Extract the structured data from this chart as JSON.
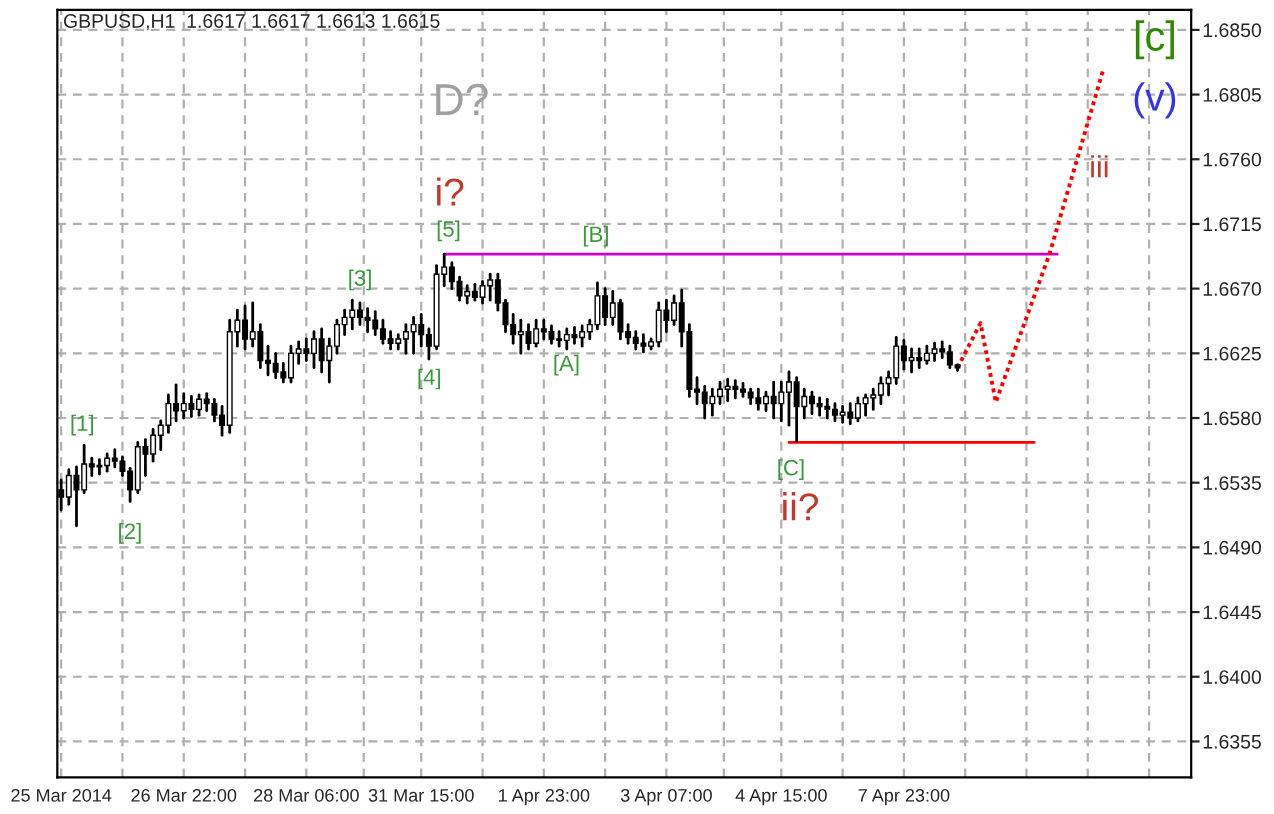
{
  "chart_data": {
    "type": "candlestick",
    "title": "GBPUSD,H1  1.6617 1.6617 1.6613 1.6615",
    "categories": [
      "25 Mar 2014",
      null,
      null,
      null,
      null,
      null,
      null,
      null,
      null,
      null,
      null,
      null,
      null,
      null,
      null,
      null,
      "26 Mar 22:00",
      null,
      null,
      null,
      null,
      null,
      null,
      null,
      null,
      null,
      null,
      null,
      null,
      null,
      null,
      null,
      "28 Mar 06:00",
      null,
      null,
      null,
      null,
      null,
      null,
      null,
      null,
      null,
      null,
      null,
      null,
      null,
      null,
      "31 Mar 15:00",
      null,
      null,
      null,
      null,
      null,
      null,
      null,
      null,
      null,
      null,
      null,
      null,
      null,
      null,
      null,
      "1 Apr 23:00",
      null,
      null,
      null,
      null,
      null,
      null,
      null,
      null,
      null,
      null,
      null,
      null,
      null,
      null,
      null,
      "3 Apr 07:00",
      null,
      null,
      null,
      null,
      null,
      null,
      null,
      null,
      null,
      null,
      null,
      null,
      null,
      null,
      "4 Apr 15:00",
      null,
      null,
      null,
      null,
      null,
      null,
      null,
      null,
      null,
      null,
      null,
      null,
      null,
      null,
      null,
      "7 Apr 23:00",
      null,
      null,
      null,
      null,
      null,
      null,
      null,
      null,
      null,
      null,
      null,
      null,
      null,
      null,
      null,
      null,
      null,
      null,
      null,
      null,
      null,
      null,
      null,
      null,
      null,
      null,
      null,
      null,
      null,
      null,
      null,
      null,
      null,
      null,
      null,
      null,
      null
    ],
    "ylim": [
      1.633,
      1.6864
    ],
    "yticks": [
      {
        "value": 1.6355,
        "label": "1.6355"
      },
      {
        "value": 1.64,
        "label": "1.6400"
      },
      {
        "value": 1.6445,
        "label": "1.6445"
      },
      {
        "value": 1.649,
        "label": "1.6490"
      },
      {
        "value": 1.6535,
        "label": "1.6535"
      },
      {
        "value": 1.658,
        "label": "1.6580"
      },
      {
        "value": 1.6625,
        "label": "1.6625"
      },
      {
        "value": 1.667,
        "label": "1.6670"
      },
      {
        "value": 1.6715,
        "label": "1.6715"
      },
      {
        "value": 1.676,
        "label": "1.6760"
      },
      {
        "value": 1.6805,
        "label": "1.6805"
      },
      {
        "value": 1.685,
        "label": "1.6850"
      }
    ],
    "grid": true,
    "series": [
      {
        "color": "#000000",
        "ohlc": [
          [
            1.653,
            1.6537,
            1.6516,
            1.6525
          ],
          [
            1.6525,
            1.6544,
            1.652,
            1.654
          ],
          [
            1.654,
            1.6546,
            1.6505,
            1.653
          ],
          [
            1.653,
            1.6561,
            1.6528,
            1.6548
          ],
          [
            1.6548,
            1.6552,
            1.654,
            1.6546
          ],
          [
            1.6546,
            1.6551,
            1.6541,
            1.6547
          ],
          [
            1.6547,
            1.6555,
            1.6543,
            1.6552
          ],
          [
            1.6552,
            1.6558,
            1.6546,
            1.655
          ],
          [
            1.655,
            1.6553,
            1.654,
            1.6543
          ],
          [
            1.6543,
            1.6545,
            1.6522,
            1.653
          ],
          [
            1.653,
            1.6563,
            1.6528,
            1.656
          ],
          [
            1.656,
            1.6565,
            1.654,
            1.6555
          ],
          [
            1.6555,
            1.6572,
            1.655,
            1.6568
          ],
          [
            1.6568,
            1.6578,
            1.6558,
            1.6575
          ],
          [
            1.6575,
            1.6596,
            1.657,
            1.659
          ],
          [
            1.659,
            1.6603,
            1.6578,
            1.6585
          ],
          [
            1.6585,
            1.6597,
            1.658,
            1.659
          ],
          [
            1.659,
            1.6595,
            1.6581,
            1.6586
          ],
          [
            1.6586,
            1.6596,
            1.6582,
            1.6593
          ],
          [
            1.6593,
            1.6597,
            1.6585,
            1.659
          ],
          [
            1.659,
            1.6593,
            1.6578,
            1.6582
          ],
          [
            1.6582,
            1.6588,
            1.6568,
            1.6575
          ],
          [
            1.6575,
            1.6648,
            1.657,
            1.664
          ],
          [
            1.664,
            1.6655,
            1.663,
            1.6648
          ],
          [
            1.6648,
            1.6658,
            1.6628,
            1.6635
          ],
          [
            1.6635,
            1.666,
            1.663,
            1.664
          ],
          [
            1.664,
            1.6645,
            1.6615,
            1.662
          ],
          [
            1.662,
            1.663,
            1.661,
            1.6618
          ],
          [
            1.6618,
            1.6625,
            1.6608,
            1.6612
          ],
          [
            1.6612,
            1.6618,
            1.6605,
            1.6608
          ],
          [
            1.6608,
            1.663,
            1.6605,
            1.6625
          ],
          [
            1.6625,
            1.6633,
            1.6618,
            1.6628
          ],
          [
            1.6628,
            1.6635,
            1.662,
            1.6625
          ],
          [
            1.6625,
            1.664,
            1.6615,
            1.6635
          ],
          [
            1.6635,
            1.6642,
            1.6612,
            1.662
          ],
          [
            1.662,
            1.6635,
            1.6605,
            1.663
          ],
          [
            1.663,
            1.6648,
            1.6625,
            1.6645
          ],
          [
            1.6645,
            1.6655,
            1.6638,
            1.665
          ],
          [
            1.665,
            1.6662,
            1.6642,
            1.6655
          ],
          [
            1.6655,
            1.666,
            1.6645,
            1.665
          ],
          [
            1.665,
            1.6656,
            1.664,
            1.6648
          ],
          [
            1.6648,
            1.6654,
            1.6638,
            1.6642
          ],
          [
            1.6642,
            1.6648,
            1.6632,
            1.6635
          ],
          [
            1.6635,
            1.664,
            1.6628,
            1.6632
          ],
          [
            1.6632,
            1.6638,
            1.6628,
            1.6635
          ],
          [
            1.6635,
            1.6645,
            1.6625,
            1.664
          ],
          [
            1.664,
            1.665,
            1.6625,
            1.6645
          ],
          [
            1.6645,
            1.6652,
            1.663,
            1.6638
          ],
          [
            1.6638,
            1.6642,
            1.6621,
            1.663
          ],
          [
            1.663,
            1.6686,
            1.6628,
            1.668
          ],
          [
            1.668,
            1.6694,
            1.6672,
            1.6685
          ],
          [
            1.6685,
            1.6688,
            1.667,
            1.6675
          ],
          [
            1.6675,
            1.6678,
            1.6662,
            1.6665
          ],
          [
            1.6665,
            1.6672,
            1.666,
            1.6668
          ],
          [
            1.6668,
            1.6673,
            1.6662,
            1.6664
          ],
          [
            1.6664,
            1.6675,
            1.666,
            1.6672
          ],
          [
            1.6672,
            1.668,
            1.6662,
            1.6676
          ],
          [
            1.6676,
            1.668,
            1.6655,
            1.666
          ],
          [
            1.666,
            1.6662,
            1.664,
            1.6645
          ],
          [
            1.6645,
            1.6652,
            1.6632,
            1.6638
          ],
          [
            1.6638,
            1.6648,
            1.6625,
            1.664
          ],
          [
            1.664,
            1.6645,
            1.6628,
            1.6632
          ],
          [
            1.6632,
            1.6648,
            1.663,
            1.6642
          ],
          [
            1.6642,
            1.6648,
            1.6635,
            1.664
          ],
          [
            1.664,
            1.6644,
            1.6632,
            1.6635
          ],
          [
            1.6635,
            1.664,
            1.663,
            1.6634
          ],
          [
            1.6634,
            1.6642,
            1.6628,
            1.6638
          ],
          [
            1.6638,
            1.6643,
            1.6632,
            1.6636
          ],
          [
            1.6636,
            1.6644,
            1.663,
            1.664
          ],
          [
            1.664,
            1.6648,
            1.6635,
            1.6645
          ],
          [
            1.6645,
            1.6674,
            1.6642,
            1.6665
          ],
          [
            1.6665,
            1.667,
            1.6645,
            1.665
          ],
          [
            1.665,
            1.6668,
            1.6645,
            1.666
          ],
          [
            1.666,
            1.6662,
            1.6635,
            1.664
          ],
          [
            1.664,
            1.6645,
            1.6632,
            1.6636
          ],
          [
            1.6636,
            1.664,
            1.6628,
            1.6632
          ],
          [
            1.6632,
            1.6638,
            1.6626,
            1.663
          ],
          [
            1.663,
            1.6635,
            1.6628,
            1.6633
          ],
          [
            1.6633,
            1.666,
            1.663,
            1.6655
          ],
          [
            1.6655,
            1.6662,
            1.664,
            1.6648
          ],
          [
            1.6648,
            1.6665,
            1.6645,
            1.666
          ],
          [
            1.666,
            1.6669,
            1.663,
            1.664
          ],
          [
            1.664,
            1.6645,
            1.6595,
            1.66
          ],
          [
            1.66,
            1.6608,
            1.659,
            1.6598
          ],
          [
            1.6598,
            1.6602,
            1.658,
            1.659
          ],
          [
            1.659,
            1.66,
            1.6582,
            1.6595
          ],
          [
            1.6595,
            1.6605,
            1.659,
            1.66
          ],
          [
            1.66,
            1.6607,
            1.6592,
            1.6602
          ],
          [
            1.6602,
            1.6606,
            1.6594,
            1.66
          ],
          [
            1.66,
            1.6604,
            1.6595,
            1.6598
          ],
          [
            1.6598,
            1.66,
            1.659,
            1.6594
          ],
          [
            1.6594,
            1.66,
            1.6586,
            1.659
          ],
          [
            1.659,
            1.6598,
            1.6585,
            1.6595
          ],
          [
            1.6595,
            1.6605,
            1.658,
            1.659
          ],
          [
            1.659,
            1.6605,
            1.6578,
            1.6598
          ],
          [
            1.6598,
            1.6612,
            1.6575,
            1.6605
          ],
          [
            1.6605,
            1.6608,
            1.6564,
            1.6588
          ],
          [
            1.6588,
            1.66,
            1.658,
            1.6595
          ],
          [
            1.6595,
            1.6598,
            1.6583,
            1.659
          ],
          [
            1.659,
            1.6594,
            1.6582,
            1.6588
          ],
          [
            1.6588,
            1.6593,
            1.658,
            1.6586
          ],
          [
            1.6586,
            1.659,
            1.6578,
            1.6582
          ],
          [
            1.6582,
            1.6588,
            1.6577,
            1.6584
          ],
          [
            1.6584,
            1.659,
            1.6576,
            1.658
          ],
          [
            1.658,
            1.6594,
            1.6578,
            1.659
          ],
          [
            1.659,
            1.6596,
            1.6582,
            1.6594
          ],
          [
            1.6594,
            1.66,
            1.6586,
            1.6596
          ],
          [
            1.6596,
            1.6608,
            1.659,
            1.6604
          ],
          [
            1.6604,
            1.6612,
            1.6596,
            1.6608
          ],
          [
            1.6608,
            1.6636,
            1.6604,
            1.663
          ],
          [
            1.663,
            1.6634,
            1.6614,
            1.662
          ],
          [
            1.662,
            1.6628,
            1.6612,
            1.6622
          ],
          [
            1.6622,
            1.6628,
            1.6615,
            1.662
          ],
          [
            1.662,
            1.663,
            1.6618,
            1.6625
          ],
          [
            1.6625,
            1.6632,
            1.662,
            1.6628
          ],
          [
            1.6628,
            1.6633,
            1.6622,
            1.6626
          ],
          [
            1.6626,
            1.663,
            1.6615,
            1.6617
          ],
          [
            1.6617,
            1.6617,
            1.6613,
            1.6615
          ],
          null,
          null,
          null,
          null,
          null,
          null,
          null,
          null,
          null,
          null,
          null,
          null,
          null,
          null,
          null,
          null,
          null,
          null,
          null,
          null,
          null,
          null,
          null,
          null,
          null,
          null,
          null,
          null,
          null,
          null
        ]
      },
      {
        "type": "line",
        "color": "#cc00cc",
        "line_style": "solid",
        "values": [
          null,
          null,
          null,
          null,
          null,
          null,
          null,
          null,
          null,
          null,
          null,
          null,
          null,
          null,
          null,
          null,
          null,
          null,
          null,
          null,
          null,
          null,
          null,
          null,
          null,
          null,
          null,
          null,
          null,
          null,
          null,
          null,
          null,
          null,
          null,
          null,
          null,
          null,
          null,
          null,
          null,
          null,
          null,
          null,
          null,
          null,
          null,
          null,
          null,
          null,
          1.6694,
          null,
          null,
          null,
          null,
          null,
          null,
          null,
          null,
          null,
          null,
          null,
          null,
          null,
          null,
          null,
          null,
          null,
          null,
          null,
          null,
          null,
          null,
          null,
          null,
          null,
          null,
          null,
          null,
          null,
          null,
          null,
          null,
          null,
          null,
          null,
          null,
          null,
          null,
          null,
          null,
          null,
          null,
          null,
          null,
          null,
          null,
          null,
          null,
          null,
          null,
          null,
          null,
          null,
          null,
          null,
          null,
          null,
          null,
          null,
          null,
          null,
          null,
          null,
          null,
          null,
          null,
          null,
          null,
          null,
          null,
          null,
          null,
          null,
          null,
          null,
          null,
          null,
          null,
          null,
          1.6694,
          null,
          null,
          null,
          null,
          null,
          null,
          null,
          null,
          null,
          null,
          null,
          null,
          null,
          null,
          null,
          null,
          null
        ]
      },
      {
        "type": "line",
        "color": "#ff0000",
        "line_style": "solid",
        "values": [
          null,
          null,
          null,
          null,
          null,
          null,
          null,
          null,
          null,
          null,
          null,
          null,
          null,
          null,
          null,
          null,
          null,
          null,
          null,
          null,
          null,
          null,
          null,
          null,
          null,
          null,
          null,
          null,
          null,
          null,
          null,
          null,
          null,
          null,
          null,
          null,
          null,
          null,
          null,
          null,
          null,
          null,
          null,
          null,
          null,
          null,
          null,
          null,
          null,
          null,
          null,
          null,
          null,
          null,
          null,
          null,
          null,
          null,
          null,
          null,
          null,
          null,
          null,
          null,
          null,
          null,
          null,
          null,
          null,
          null,
          null,
          null,
          null,
          null,
          null,
          null,
          null,
          null,
          null,
          null,
          null,
          null,
          null,
          null,
          null,
          null,
          null,
          null,
          null,
          null,
          null,
          null,
          null,
          null,
          null,
          1.6563,
          null,
          null,
          null,
          null,
          null,
          null,
          null,
          null,
          null,
          null,
          null,
          null,
          null,
          null,
          null,
          null,
          null,
          null,
          null,
          null,
          null,
          null,
          null,
          null,
          null,
          null,
          null,
          null,
          null,
          null,
          null,
          1.6563,
          null,
          null,
          null,
          null,
          null,
          null,
          null,
          null,
          null,
          null,
          null,
          null,
          null,
          null,
          null,
          null,
          null,
          null,
          null,
          null
        ]
      },
      {
        "type": "line",
        "color": "#ff0000",
        "line_style": "dotted",
        "values": [
          null,
          null,
          null,
          null,
          null,
          null,
          null,
          null,
          null,
          null,
          null,
          null,
          null,
          null,
          null,
          null,
          null,
          null,
          null,
          null,
          null,
          null,
          null,
          null,
          null,
          null,
          null,
          null,
          null,
          null,
          null,
          null,
          null,
          null,
          null,
          null,
          null,
          null,
          null,
          null,
          null,
          null,
          null,
          null,
          null,
          null,
          null,
          null,
          null,
          null,
          null,
          null,
          null,
          null,
          null,
          null,
          null,
          null,
          null,
          null,
          null,
          null,
          null,
          null,
          null,
          null,
          null,
          null,
          null,
          null,
          null,
          null,
          null,
          null,
          null,
          null,
          null,
          null,
          null,
          null,
          null,
          null,
          null,
          null,
          null,
          null,
          null,
          null,
          null,
          null,
          null,
          null,
          null,
          null,
          null,
          null,
          null,
          null,
          null,
          null,
          null,
          null,
          null,
          null,
          null,
          null,
          null,
          null,
          null,
          null,
          null,
          null,
          null,
          null,
          null,
          null,
          null,
          1.6615,
          null,
          null,
          1.6646,
          null,
          1.6591,
          null,
          null,
          null,
          null,
          null,
          null,
          1.6694,
          null,
          null,
          null,
          null,
          null,
          null,
          1.6822,
          null,
          null,
          null,
          null,
          null,
          null,
          null,
          null,
          null,
          null,
          null
        ]
      }
    ],
    "annotations": [
      "[1]",
      "[2]",
      "[3]",
      "[4]",
      "[5]",
      "i?",
      "D?",
      "[A]",
      "[B]",
      "[C]",
      "ii?",
      "iii",
      "(v)",
      "[c]"
    ]
  }
}
